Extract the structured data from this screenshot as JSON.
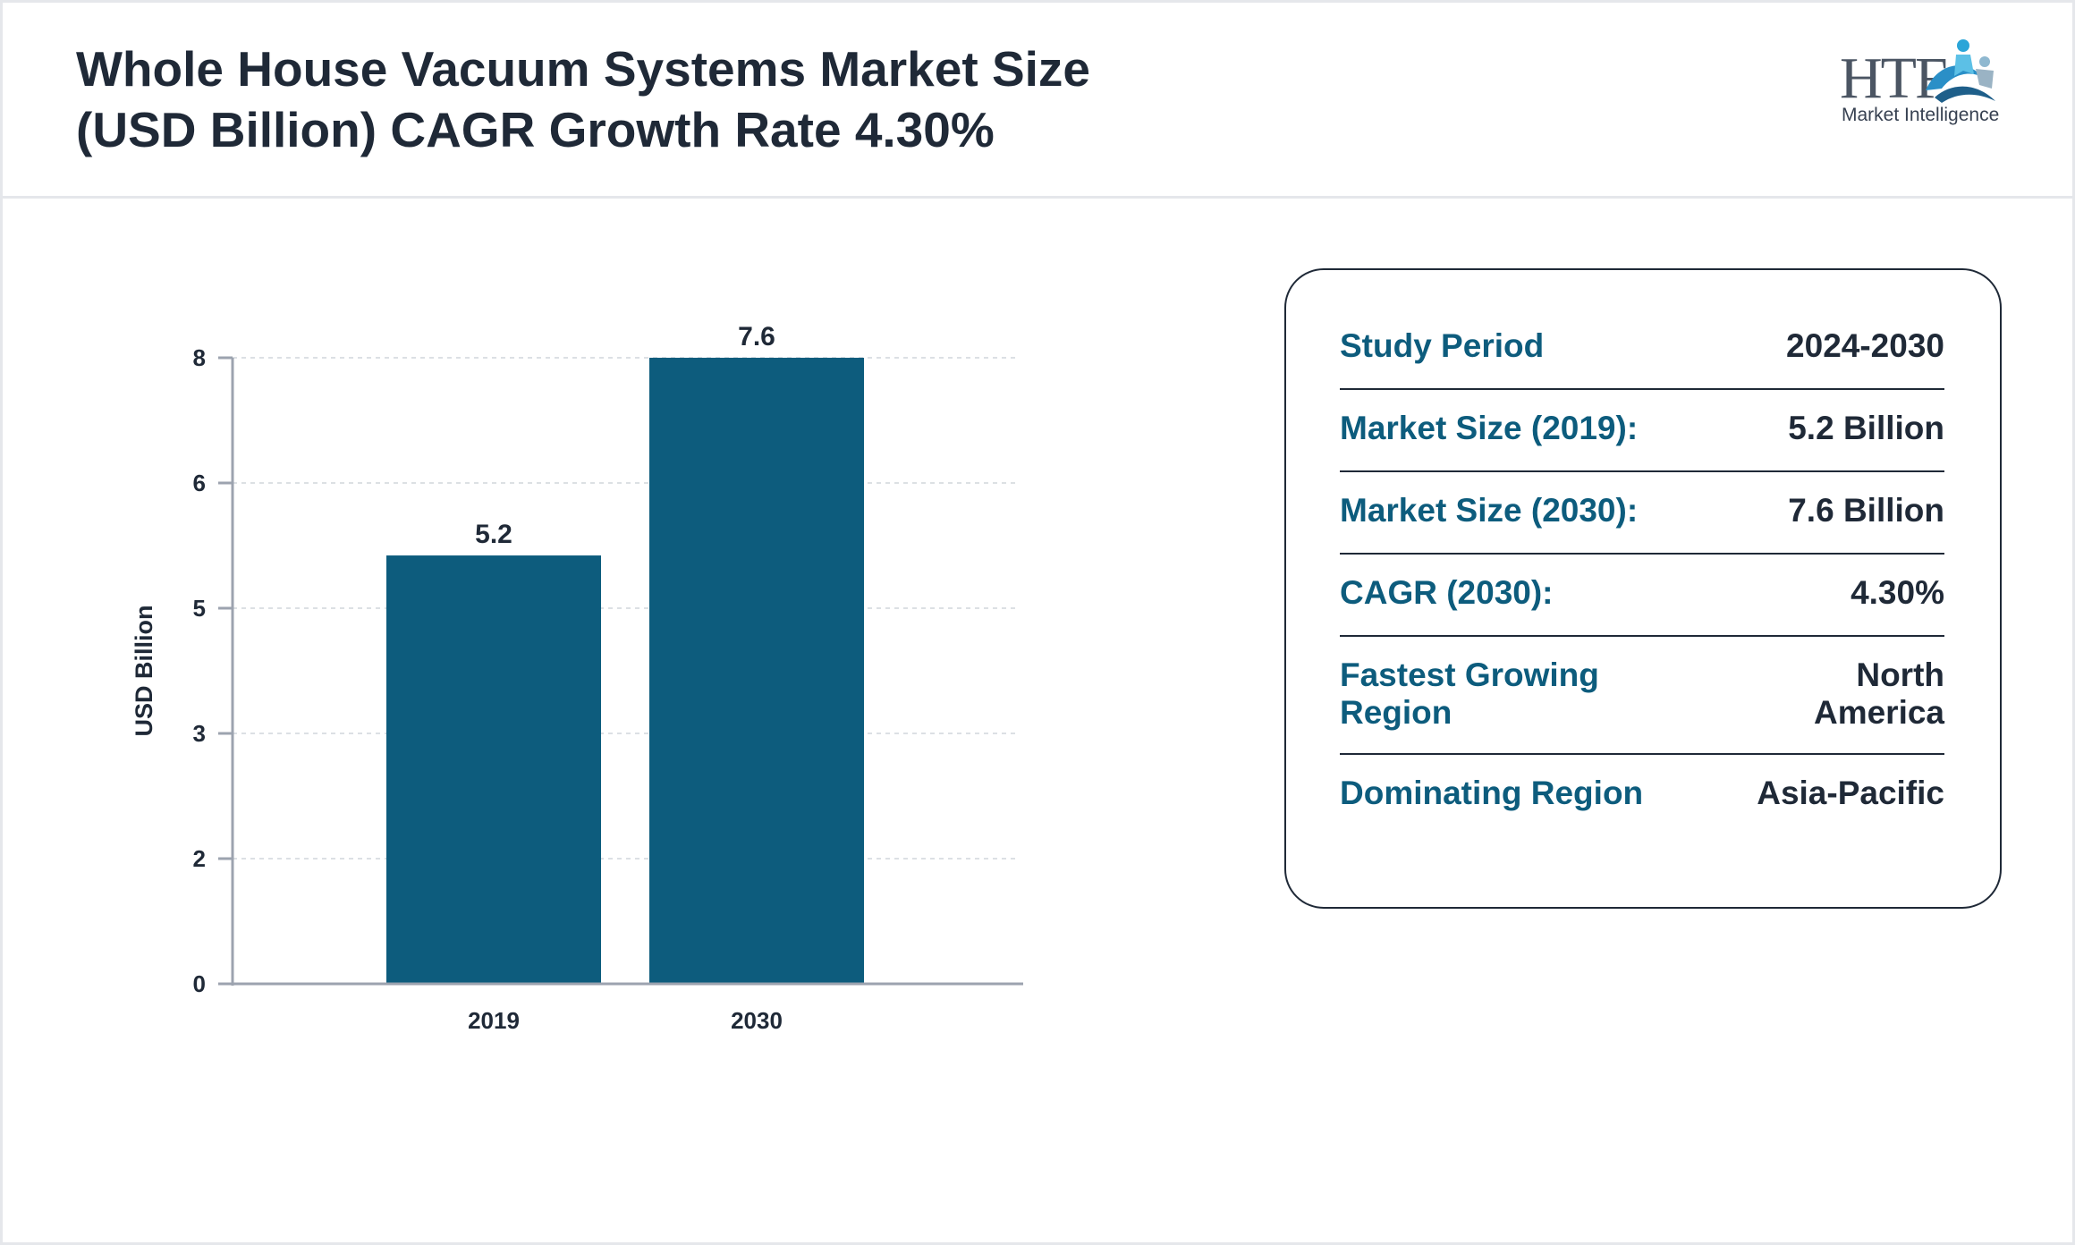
{
  "header": {
    "title_line1": "Whole House Vacuum Systems Market Size",
    "title_line2": "(USD Billion) CAGR Growth Rate 4.30%",
    "logo_main": "HTF",
    "logo_sub": "Market Intelligence"
  },
  "chart_data": {
    "type": "bar",
    "categories": [
      "2019",
      "2030"
    ],
    "values": [
      5.2,
      7.6
    ],
    "data_labels": [
      "5.2",
      "7.6"
    ],
    "ylabel": "USD Billion",
    "xlabel": "",
    "yticks": [
      0,
      2,
      3,
      5,
      6,
      8
    ],
    "ylim": [
      0,
      7.6
    ],
    "grid": true,
    "bar_color": "#0d5c7d"
  },
  "info": {
    "rows": [
      {
        "label": "Study Period",
        "value": "2024-2030"
      },
      {
        "label": "Market Size (2019):",
        "value": "5.2 Billion"
      },
      {
        "label": "Market Size (2030):",
        "value": "7.6 Billion"
      },
      {
        "label": "CAGR (2030):",
        "value": "4.30%"
      },
      {
        "label": "Fastest Growing Region",
        "value": "North America"
      },
      {
        "label": "Dominating Region",
        "value": "Asia-Pacific"
      }
    ]
  },
  "colors": {
    "accent": "#0d5c7d",
    "text": "#1f2937",
    "border": "#e5e7eb"
  }
}
